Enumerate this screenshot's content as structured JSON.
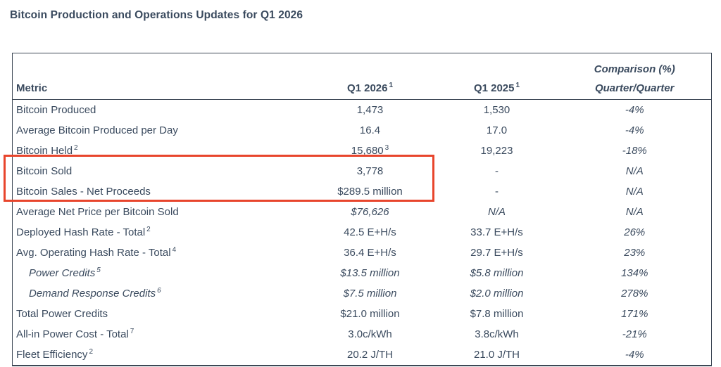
{
  "title": "Bitcoin Production and Operations Updates for Q1 2026",
  "colors": {
    "text": "#3a4a5e",
    "border": "#3d4755",
    "highlight": "#e8452c"
  },
  "table": {
    "columns": {
      "metric": "Metric",
      "q1_2026": {
        "label": "Q1 2026",
        "sup": "1"
      },
      "q1_2025": {
        "label": "Q1 2025",
        "sup": "1"
      },
      "comparison": {
        "line1": "Comparison (%)",
        "line2": "Quarter/Quarter"
      }
    },
    "rows": [
      {
        "metric": "Bitcoin Produced",
        "metric_sup": "",
        "q1_2026": "1,473",
        "q1_2026_sup": "",
        "q1_2025": "1,530",
        "comparison": "-4%",
        "italic_label": false,
        "italic_values": false,
        "indent": false,
        "highlight": false
      },
      {
        "metric": "Average Bitcoin Produced per Day",
        "metric_sup": "",
        "q1_2026": "16.4",
        "q1_2026_sup": "",
        "q1_2025": "17.0",
        "comparison": "-4%",
        "italic_label": false,
        "italic_values": false,
        "indent": false,
        "highlight": false
      },
      {
        "metric": "Bitcoin Held",
        "metric_sup": "2",
        "q1_2026": "15,680",
        "q1_2026_sup": "3",
        "q1_2025": "19,223",
        "comparison": "-18%",
        "italic_label": false,
        "italic_values": false,
        "indent": false,
        "highlight": false
      },
      {
        "metric": "Bitcoin Sold",
        "metric_sup": "",
        "q1_2026": "3,778",
        "q1_2026_sup": "",
        "q1_2025": "-",
        "comparison": "N/A",
        "italic_label": false,
        "italic_values": false,
        "indent": false,
        "highlight": true
      },
      {
        "metric": "Bitcoin Sales - Net Proceeds",
        "metric_sup": "",
        "q1_2026": "$289.5 million",
        "q1_2026_sup": "",
        "q1_2025": "-",
        "comparison": "N/A",
        "italic_label": false,
        "italic_values": false,
        "indent": false,
        "highlight": true
      },
      {
        "metric": "Average Net Price per Bitcoin Sold",
        "metric_sup": "",
        "q1_2026": "$76,626",
        "q1_2026_sup": "",
        "q1_2025": "N/A",
        "comparison": "N/A",
        "italic_label": false,
        "italic_values": true,
        "indent": false,
        "highlight": false
      },
      {
        "metric": "Deployed Hash Rate - Total",
        "metric_sup": "2",
        "q1_2026": "42.5 E+H/s",
        "q1_2026_sup": "",
        "q1_2025": "33.7 E+H/s",
        "comparison": "26%",
        "italic_label": false,
        "italic_values": false,
        "indent": false,
        "highlight": false
      },
      {
        "metric": "Avg. Operating Hash Rate - Total",
        "metric_sup": "4",
        "q1_2026": "36.4 E+H/s",
        "q1_2026_sup": "",
        "q1_2025": "29.7 E+H/s",
        "comparison": "23%",
        "italic_label": false,
        "italic_values": false,
        "indent": false,
        "highlight": false
      },
      {
        "metric": "Power Credits",
        "metric_sup": "5",
        "q1_2026": "$13.5 million",
        "q1_2026_sup": "",
        "q1_2025": "$5.8 million",
        "comparison": "134%",
        "italic_label": true,
        "italic_values": true,
        "indent": true,
        "highlight": false
      },
      {
        "metric": "Demand Response Credits",
        "metric_sup": "6",
        "q1_2026": "$7.5 million",
        "q1_2026_sup": "",
        "q1_2025": "$2.0 million",
        "comparison": "278%",
        "italic_label": true,
        "italic_values": true,
        "indent": true,
        "highlight": false
      },
      {
        "metric": "Total Power Credits",
        "metric_sup": "",
        "q1_2026": "$21.0 million",
        "q1_2026_sup": "",
        "q1_2025": "$7.8 million",
        "comparison": "171%",
        "italic_label": false,
        "italic_values": false,
        "indent": false,
        "highlight": false
      },
      {
        "metric": "All-in Power Cost - Total",
        "metric_sup": "7",
        "q1_2026": "3.0c/kWh",
        "q1_2026_sup": "",
        "q1_2025": "3.8c/kWh",
        "comparison": "-21%",
        "italic_label": false,
        "italic_values": false,
        "indent": false,
        "highlight": false
      },
      {
        "metric": "Fleet Efficiency",
        "metric_sup": "2",
        "q1_2026": "20.2 J/TH",
        "q1_2026_sup": "",
        "q1_2025": "21.0 J/TH",
        "comparison": "-4%",
        "italic_label": false,
        "italic_values": false,
        "indent": false,
        "highlight": false
      }
    ]
  }
}
